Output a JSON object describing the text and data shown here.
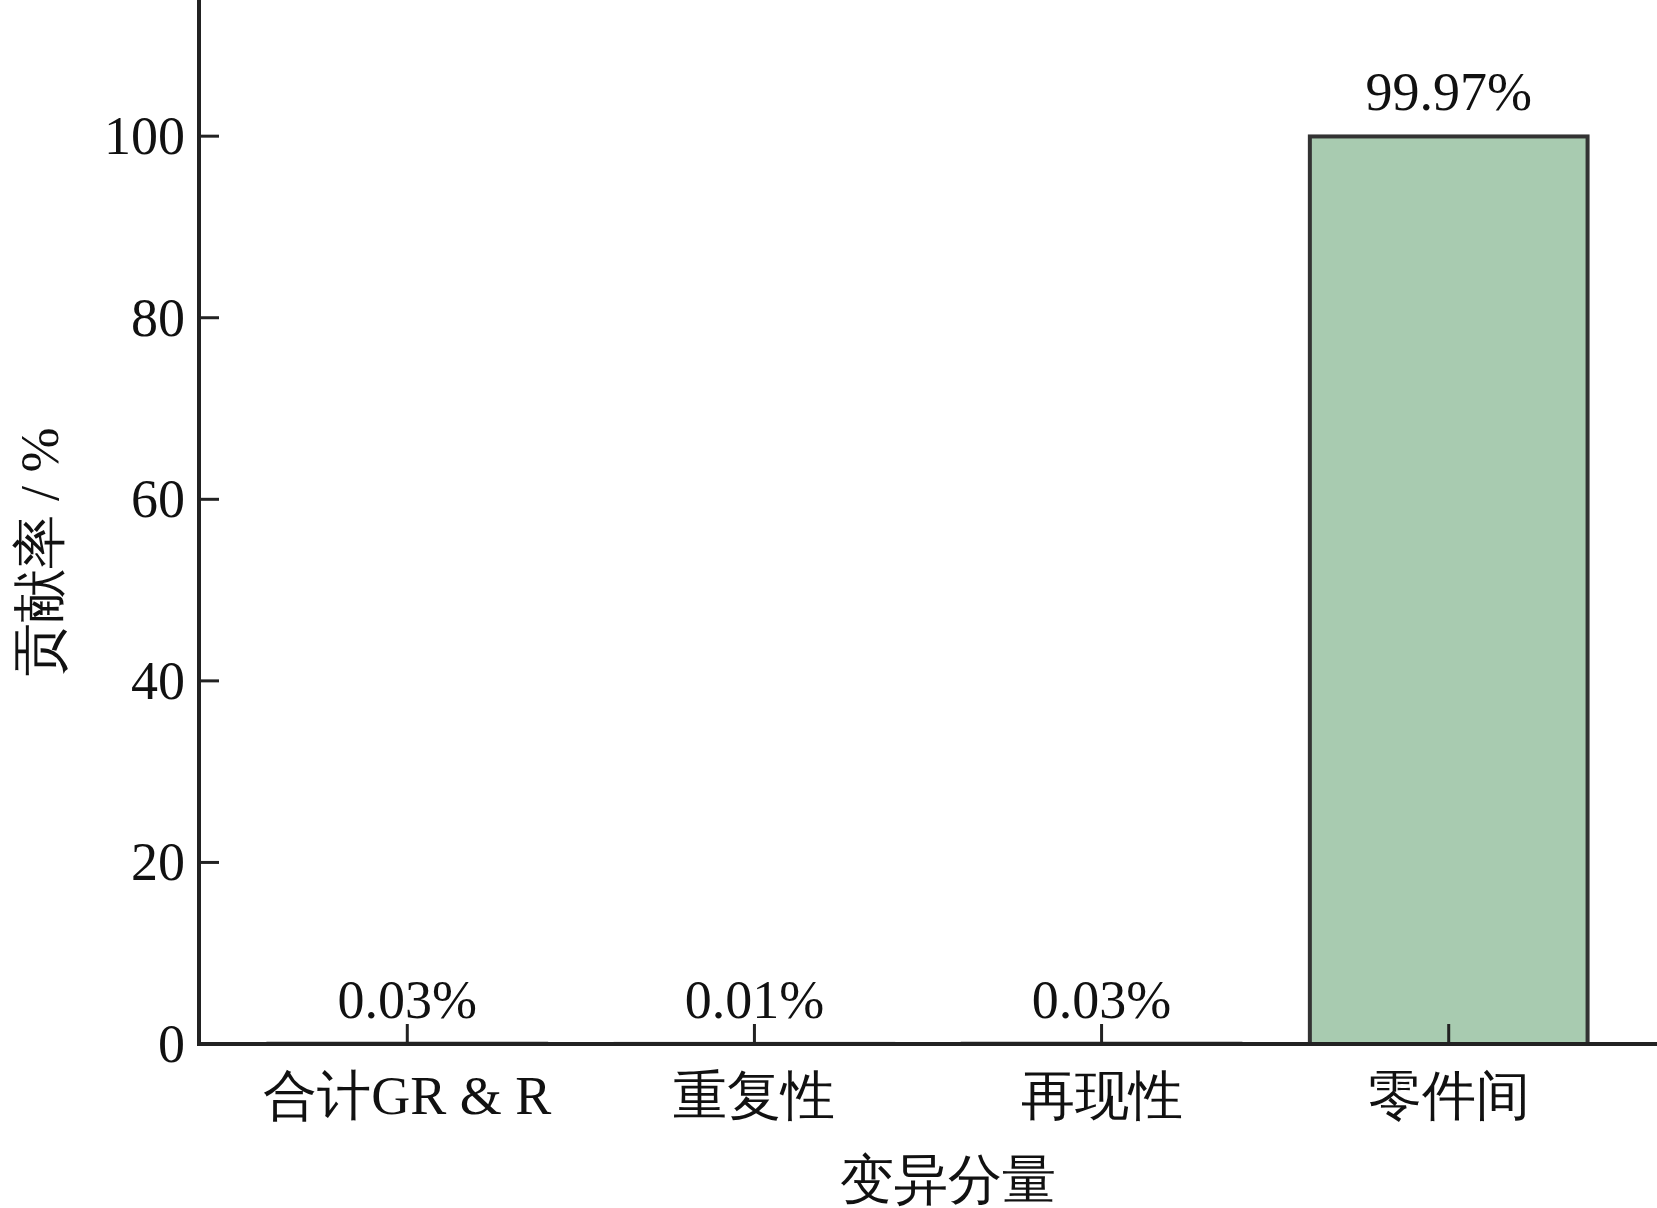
{
  "chart_data": {
    "type": "bar",
    "xlabel": "变异分量",
    "ylabel": "贡献率 / %",
    "categories": [
      "合计GR & R",
      "重复性",
      "再现性",
      "零件间"
    ],
    "values": [
      0.03,
      0.01,
      0.03,
      99.97
    ],
    "value_labels": [
      "0.03%",
      "0.01%",
      "0.03%",
      "99.97%"
    ],
    "color": "#a8cbb0",
    "ylim": [
      0,
      115
    ],
    "yticks": [
      0,
      20,
      40,
      60,
      80,
      100
    ],
    "grid": false
  }
}
